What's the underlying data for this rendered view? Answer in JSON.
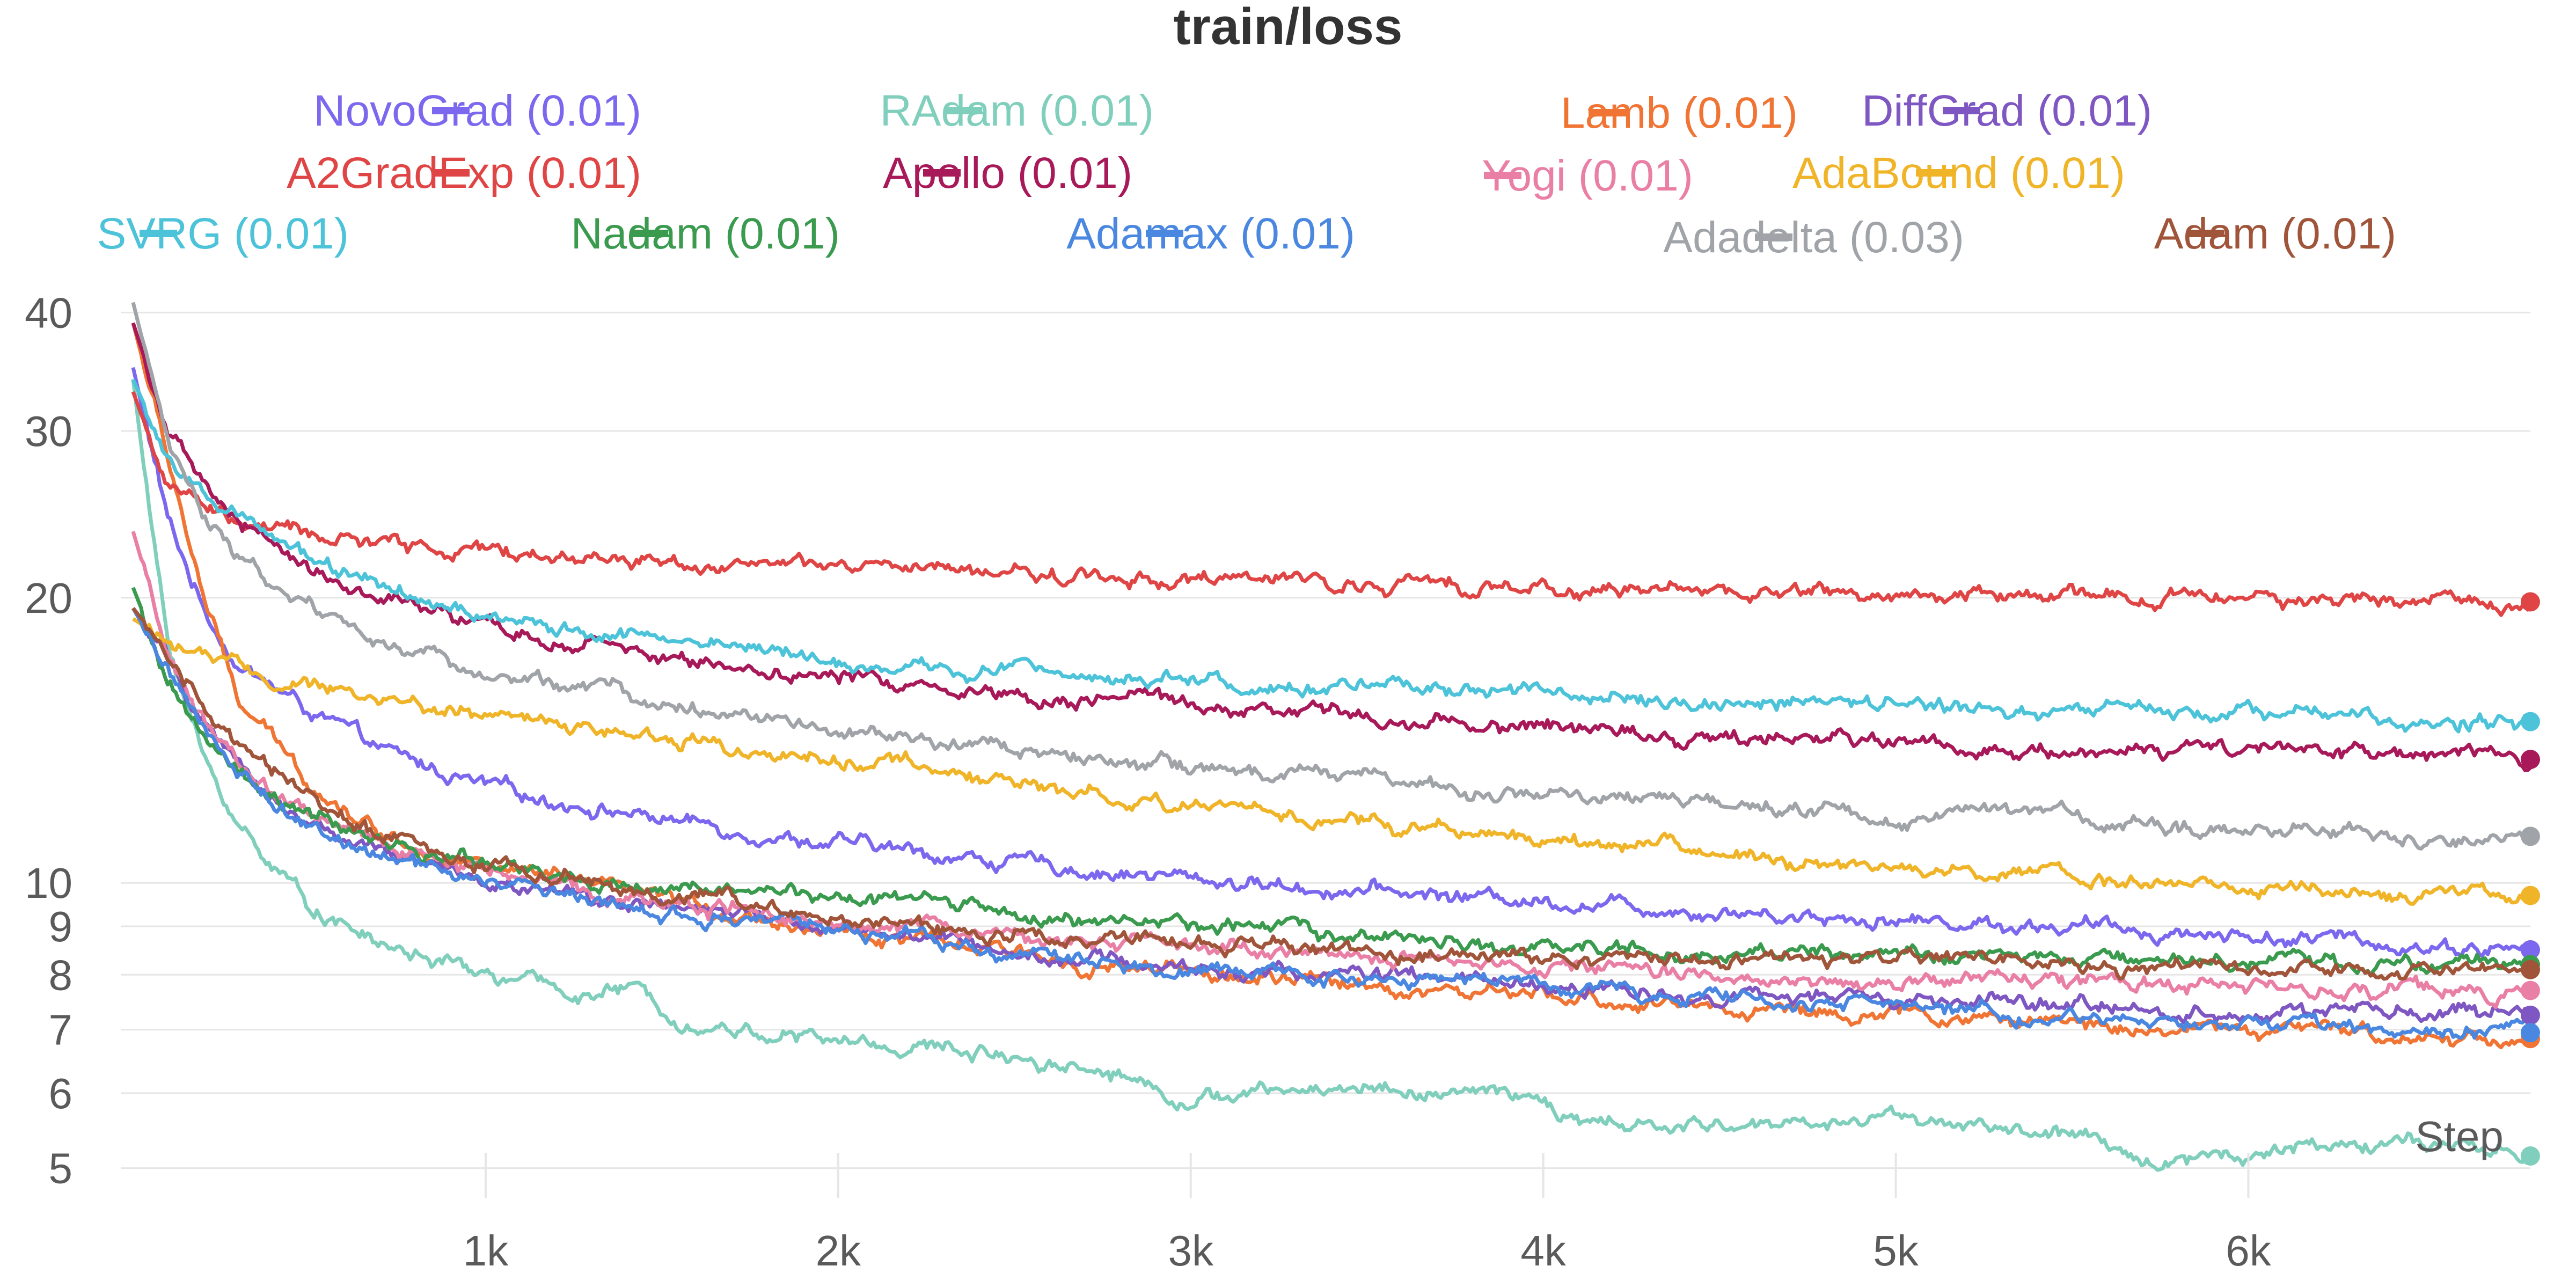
{
  "chart_data": {
    "type": "line",
    "title": "train/loss",
    "x_axis_label": "Step",
    "y_scale": "log",
    "xlim": [
      0,
      6800
    ],
    "ylim": [
      4.85,
      42
    ],
    "x_ticks": [
      1000,
      2000,
      3000,
      4000,
      5000,
      6000
    ],
    "x_tick_labels": [
      "1k",
      "2k",
      "3k",
      "4k",
      "5k",
      "6k"
    ],
    "y_ticks": [
      5,
      6,
      7,
      8,
      9,
      10,
      20,
      30,
      40
    ],
    "y_tick_labels": [
      "5",
      "6",
      "7",
      "8",
      "9",
      "10",
      "20",
      "30",
      "40"
    ],
    "grid": true,
    "legend_position": "top",
    "series": [
      {
        "name": "NovoGrad (0.01)",
        "color": "#7b68ee",
        "x": [
          0,
          100,
          200,
          300,
          500,
          700,
          1000,
          1500,
          2000,
          2500,
          3000,
          3500,
          4000,
          4500,
          5000,
          5500,
          6000,
          6500,
          6800
        ],
        "y": [
          35,
          24,
          19.5,
          17,
          15.2,
          13.8,
          12.6,
          11.7,
          11.0,
          10.5,
          10.1,
          9.8,
          9.6,
          9.35,
          9.15,
          9.0,
          8.8,
          8.6,
          8.5
        ]
      },
      {
        "name": "RAdam (0.01)",
        "color": "#80cfbc",
        "x": [
          0,
          50,
          100,
          200,
          300,
          500,
          700,
          1000,
          1300,
          1400,
          1600,
          2000,
          2500,
          2800,
          3000,
          3200,
          3500,
          3700,
          4000,
          4050,
          4300,
          4800,
          5000,
          5300,
          5500,
          5700,
          6000,
          6400,
          6600,
          6800
        ],
        "y": [
          34,
          24,
          18,
          13.5,
          11.5,
          9.5,
          8.6,
          8.0,
          7.6,
          7.75,
          7.1,
          6.8,
          6.6,
          6.3,
          5.9,
          6.0,
          6.1,
          6.0,
          5.95,
          5.6,
          5.5,
          5.6,
          5.7,
          5.5,
          5.4,
          5.1,
          5.2,
          5.35,
          5.2,
          5.15
        ]
      },
      {
        "name": "Lamb (0.01)",
        "color": "#f07535",
        "x": [
          0,
          100,
          200,
          300,
          500,
          700,
          1000,
          1500,
          2000,
          2500,
          3000,
          3500,
          4000,
          4500,
          5000,
          5500,
          6000,
          6500,
          6800
        ],
        "y": [
          39,
          28,
          20,
          15.5,
          12.8,
          11.3,
          10.4,
          9.6,
          8.9,
          8.4,
          8.0,
          7.8,
          7.55,
          7.4,
          7.25,
          7.1,
          7.0,
          6.9,
          6.85
        ]
      },
      {
        "name": "DiffGrad (0.01)",
        "color": "#7e57c2",
        "x": [
          0,
          100,
          200,
          300,
          500,
          700,
          1000,
          1500,
          2000,
          2500,
          3000,
          3500,
          4000,
          4500,
          5000,
          5500,
          6000,
          6500,
          6800
        ],
        "y": [
          19.5,
          17.0,
          14.8,
          13.0,
          11.6,
          10.7,
          10.0,
          9.4,
          9.0,
          8.5,
          8.1,
          8.0,
          7.75,
          7.6,
          7.5,
          7.4,
          7.3,
          7.3,
          7.25
        ]
      },
      {
        "name": "A2GradExp (0.01)",
        "color": "#e04545",
        "x": [
          0,
          100,
          200,
          300,
          500,
          700,
          1000,
          1500,
          2000,
          2500,
          3000,
          3500,
          4000,
          4500,
          5000,
          5500,
          6000,
          6500,
          6800
        ],
        "y": [
          33,
          26,
          25,
          24,
          23.3,
          22.8,
          22.3,
          21.9,
          21.5,
          21.2,
          20.9,
          20.7,
          20.5,
          20.35,
          20.2,
          20.05,
          19.95,
          19.85,
          19.8
        ]
      },
      {
        "name": "Apollo (0.01)",
        "color": "#a8195a",
        "x": [
          0,
          100,
          200,
          300,
          500,
          700,
          1000,
          1500,
          2000,
          2500,
          3000,
          3500,
          4000,
          4500,
          5000,
          5500,
          6000,
          6500,
          6800
        ],
        "y": [
          39,
          30,
          26,
          24,
          21.5,
          20.0,
          18.5,
          17.3,
          16.5,
          15.9,
          15.4,
          15.0,
          14.6,
          14.3,
          14.1,
          13.85,
          13.7,
          13.55,
          13.5
        ]
      },
      {
        "name": "Yogi (0.01)",
        "color": "#ea7fa5",
        "x": [
          0,
          100,
          200,
          300,
          500,
          700,
          1000,
          1500,
          2000,
          2500,
          3000,
          3500,
          4000,
          4500,
          5000,
          5500,
          6000,
          6500,
          6800
        ],
        "y": [
          23.5,
          17.5,
          14.8,
          13.3,
          11.8,
          11.0,
          10.3,
          9.6,
          9.2,
          8.8,
          8.5,
          8.3,
          8.1,
          8.0,
          7.95,
          7.85,
          7.75,
          7.7,
          7.7
        ]
      },
      {
        "name": "AdaBound (0.01)",
        "color": "#f0b429",
        "x": [
          0,
          100,
          200,
          300,
          500,
          700,
          1000,
          1500,
          2000,
          2500,
          3000,
          3500,
          4000,
          4500,
          5000,
          5500,
          6000,
          6500,
          6800
        ],
        "y": [
          19.0,
          18.0,
          17.3,
          16.8,
          16.1,
          15.6,
          15.0,
          14.3,
          13.5,
          12.8,
          12.1,
          11.6,
          11.1,
          10.7,
          10.4,
          10.1,
          9.9,
          9.7,
          9.7
        ]
      },
      {
        "name": "SVRG (0.01)",
        "color": "#4dc3d9",
        "x": [
          0,
          100,
          200,
          300,
          500,
          700,
          1000,
          1500,
          2000,
          2500,
          3000,
          3500,
          4000,
          4500,
          5000,
          5500,
          6000,
          6500,
          6800
        ],
        "y": [
          34,
          28,
          25.5,
          24,
          22.0,
          20.5,
          19.0,
          18.0,
          17.2,
          16.8,
          16.4,
          16.1,
          15.8,
          15.6,
          15.4,
          15.2,
          15.0,
          14.85,
          14.8
        ]
      },
      {
        "name": "Nadam (0.01)",
        "color": "#3a9a4e",
        "x": [
          0,
          100,
          200,
          300,
          500,
          700,
          1000,
          1500,
          2000,
          2500,
          3000,
          3500,
          4000,
          4500,
          5000,
          5500,
          6000,
          6500,
          6800
        ],
        "y": [
          20.5,
          16.5,
          14.3,
          13.0,
          11.7,
          11.0,
          10.4,
          9.9,
          9.6,
          9.3,
          9.0,
          8.8,
          8.6,
          8.5,
          8.4,
          8.3,
          8.25,
          8.2,
          8.2
        ]
      },
      {
        "name": "Adamax (0.01)",
        "color": "#4a87e0",
        "x": [
          0,
          100,
          200,
          300,
          500,
          700,
          1000,
          1500,
          2000,
          2500,
          3000,
          3500,
          4000,
          4500,
          5000,
          5500,
          6000,
          6500,
          6800
        ],
        "y": [
          19.5,
          16.8,
          14.6,
          12.9,
          11.5,
          10.6,
          9.9,
          9.3,
          8.9,
          8.5,
          8.15,
          8.0,
          7.8,
          7.55,
          7.4,
          7.25,
          7.1,
          7.0,
          6.95
        ]
      },
      {
        "name": "Adadelta (0.03)",
        "color": "#a0a4a8",
        "x": [
          0,
          100,
          200,
          300,
          500,
          700,
          1000,
          1500,
          2000,
          2500,
          3000,
          3500,
          4000,
          4500,
          5000,
          5500,
          6000,
          6500,
          6800
        ],
        "y": [
          41,
          29,
          24.5,
          22.0,
          19.5,
          18.0,
          16.7,
          15.4,
          14.5,
          13.8,
          13.2,
          12.8,
          12.4,
          12.1,
          11.8,
          11.6,
          11.4,
          11.2,
          11.2
        ]
      },
      {
        "name": "Adam (0.01)",
        "color": "#a0553a",
        "x": [
          0,
          100,
          200,
          300,
          500,
          700,
          1000,
          1500,
          2000,
          2500,
          3000,
          3500,
          4000,
          4500,
          5000,
          5500,
          6000,
          6500,
          6800
        ],
        "y": [
          19.5,
          17.5,
          15.5,
          13.8,
          12.2,
          11.2,
          10.5,
          9.8,
          9.2,
          8.8,
          8.6,
          8.45,
          8.3,
          8.3,
          8.25,
          8.2,
          8.15,
          8.1,
          8.1
        ]
      }
    ]
  }
}
